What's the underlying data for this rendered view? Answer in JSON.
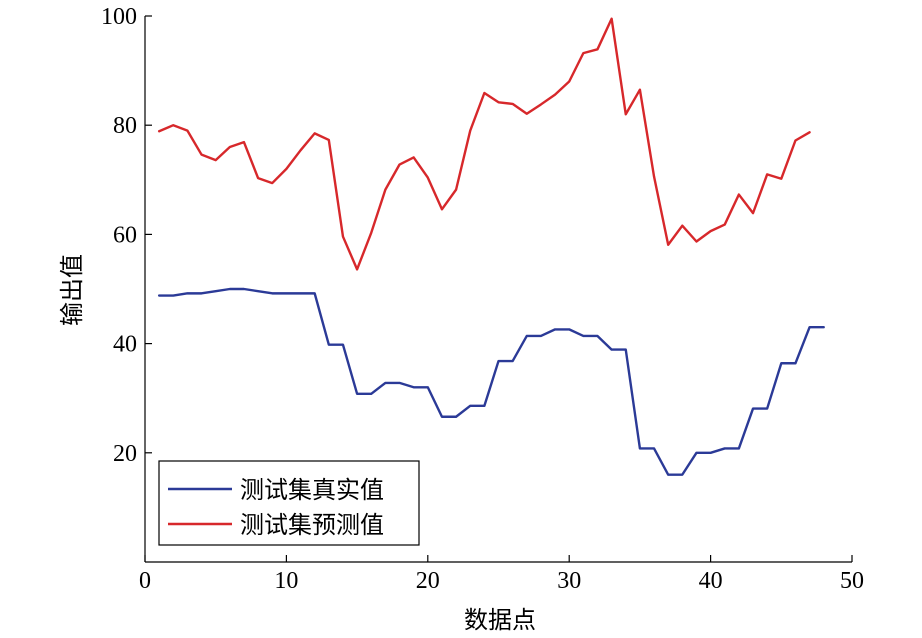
{
  "chart_data": {
    "type": "line",
    "title": "",
    "xlabel": "数据点",
    "ylabel": "输出值",
    "xlim": [
      0,
      50
    ],
    "ylim": [
      0,
      100
    ],
    "xticks": [
      0,
      10,
      20,
      30,
      40,
      50
    ],
    "yticks": [
      20,
      40,
      60,
      80,
      100
    ],
    "grid": false,
    "legend_position": "bottom-left",
    "series": [
      {
        "name": "测试集真实值",
        "color": "#2b3a97",
        "x": [
          1,
          2,
          3,
          4,
          5,
          6,
          7,
          8,
          9,
          10,
          11,
          12,
          13,
          14,
          15,
          16,
          17,
          18,
          19,
          20,
          21,
          22,
          23,
          24,
          25,
          26,
          27,
          28,
          29,
          30,
          31,
          32,
          33,
          34,
          35,
          36,
          37,
          38,
          39,
          40,
          41,
          42,
          43,
          44,
          45,
          46,
          47,
          48
        ],
        "values": [
          48.8,
          48.8,
          49.2,
          49.2,
          49.6,
          50,
          50,
          49.6,
          49.2,
          49.2,
          49.2,
          49.2,
          39.8,
          39.8,
          30.8,
          30.8,
          32.8,
          32.8,
          32,
          32,
          26.6,
          26.6,
          28.6,
          28.6,
          36.8,
          36.8,
          41.4,
          41.4,
          42.6,
          42.6,
          41.4,
          41.4,
          38.9,
          38.9,
          20.8,
          20.8,
          16,
          16,
          20,
          20,
          20.8,
          20.8,
          28.1,
          28.1,
          36.4,
          36.4,
          43,
          43
        ]
      },
      {
        "name": "测试集预测值",
        "color": "#d7282b",
        "x": [
          1,
          2,
          3,
          4,
          5,
          6,
          7,
          8,
          9,
          10,
          11,
          12,
          13,
          14,
          15,
          16,
          17,
          18,
          19,
          20,
          21,
          22,
          23,
          24,
          25,
          26,
          27,
          28,
          29,
          30,
          31,
          32,
          33,
          34,
          35,
          36,
          37,
          38,
          39,
          40,
          41,
          42,
          43,
          44,
          45,
          46,
          47
        ],
        "values": [
          78.9,
          80,
          79,
          74.6,
          73.6,
          76,
          76.9,
          70.3,
          69.4,
          72,
          75.4,
          78.5,
          77.3,
          59.6,
          53.6,
          60.3,
          68.2,
          72.8,
          74.1,
          70.4,
          64.6,
          68.2,
          79,
          85.9,
          84.2,
          83.9,
          82.1,
          83.8,
          85.6,
          88,
          93.2,
          93.9,
          99.5,
          82,
          86.5,
          70.6,
          58.1,
          61.6,
          58.7,
          60.6,
          61.8,
          67.3,
          63.9,
          71,
          70.2,
          77.2,
          78.7
        ]
      }
    ]
  }
}
